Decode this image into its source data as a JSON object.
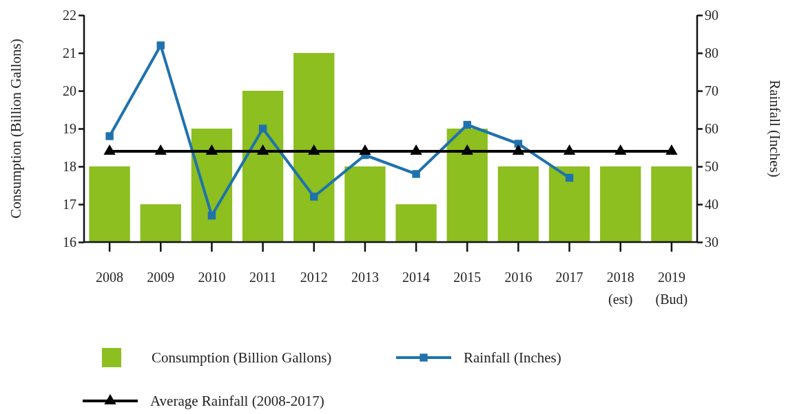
{
  "chart_data": {
    "type": "bar",
    "ylabel": "Consumption (Billion Gallons)",
    "y2label": "Rainfall (Inches)",
    "categories": [
      "2008",
      "2009",
      "2010",
      "2011",
      "2012",
      "2013",
      "2014",
      "2015",
      "2016",
      "2017",
      "2018 (est)",
      "2019 (Bud)"
    ],
    "series": [
      {
        "name": "Consumption (Billion Gallons)",
        "color": "#8cbf1f",
        "values": [
          18,
          17,
          19,
          20,
          21,
          18,
          17,
          19,
          18,
          18,
          18,
          18
        ]
      },
      {
        "name": "Rainfall (Inches)",
        "type": "line",
        "axis": "y2",
        "color": "#1f72ad",
        "marker": "square",
        "values": [
          58,
          82,
          37,
          60,
          42,
          53,
          48,
          61,
          56,
          47,
          null,
          null
        ]
      },
      {
        "name": "Average Rainfall (2008-2017)",
        "type": "line",
        "axis": "y2",
        "color": "#000000",
        "marker": "triangle",
        "values": [
          54,
          54,
          54,
          54,
          54,
          54,
          54,
          54,
          54,
          54,
          54,
          54
        ]
      }
    ],
    "ylim": [
      16,
      22
    ],
    "yticks": [
      16,
      17,
      18,
      19,
      20,
      21,
      22
    ],
    "y2lim": [
      30,
      90
    ],
    "y2ticks": [
      30,
      40,
      50,
      60,
      70,
      80,
      90
    ],
    "legend": "bottom"
  }
}
